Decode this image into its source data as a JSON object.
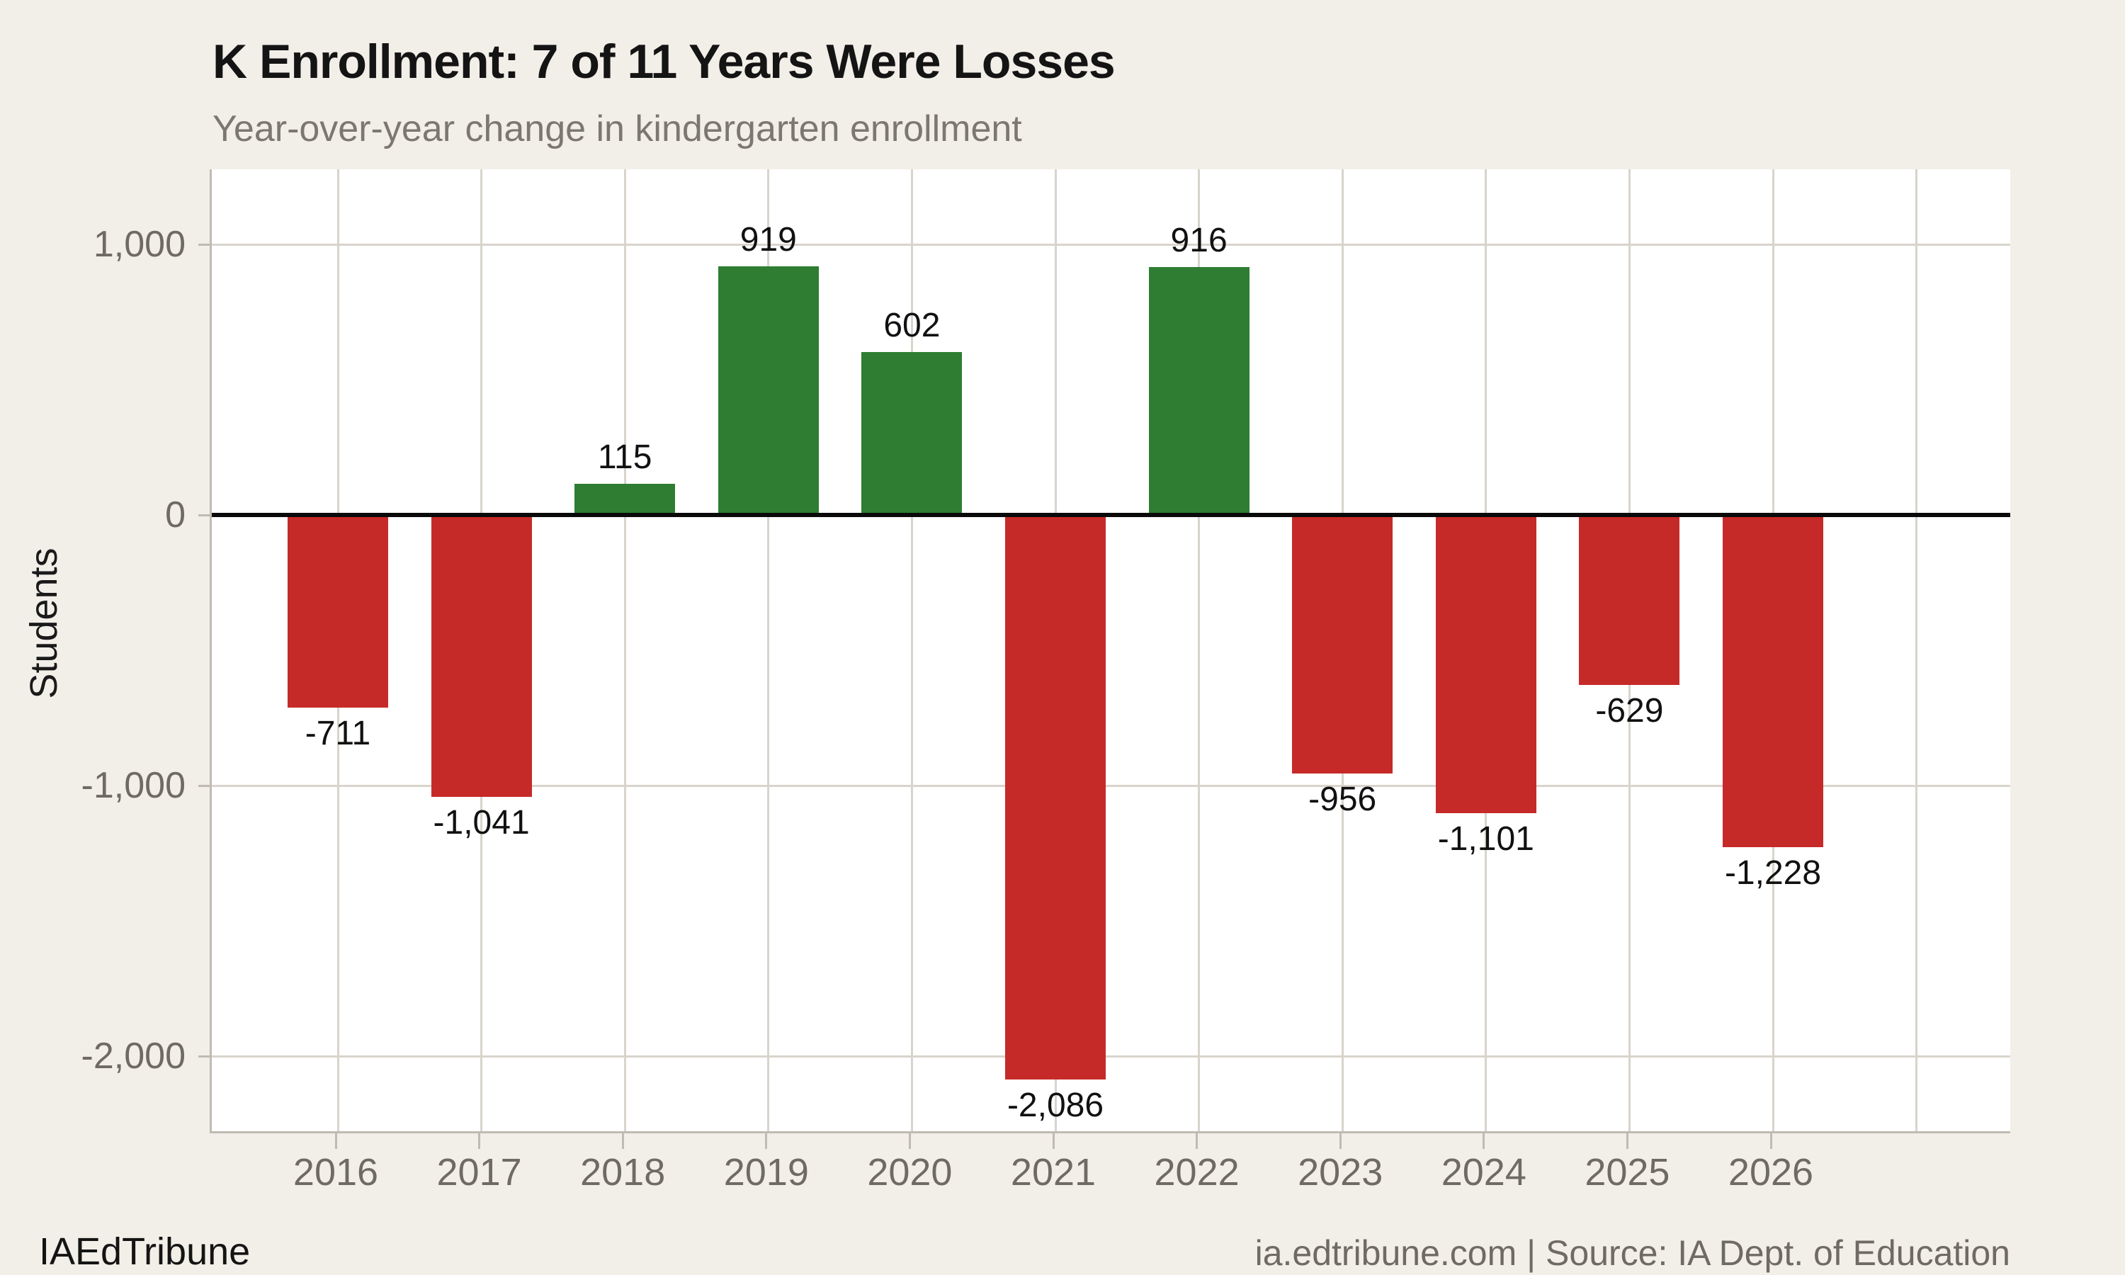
{
  "header": {
    "title": "K Enrollment: 7 of 11 Years Were Losses",
    "subtitle": "Year-over-year change in kindergarten enrollment"
  },
  "footer": {
    "brand": "IAEdTribune",
    "source": "ia.edtribune.com | Source: IA Dept. of Education"
  },
  "colors": {
    "background": "#f2efe8",
    "plot_background": "#ffffff",
    "positive_bar": "#2e7d33",
    "negative_bar": "#c62a28",
    "gridline": "#d8d4cc",
    "axis_line": "#bfbbb3",
    "zero_line": "#0a0a0a",
    "tick_text": "#6f6b64"
  },
  "chart_data": {
    "type": "bar",
    "title": "K Enrollment: 7 of 11 Years Were Losses",
    "subtitle": "Year-over-year change in kindergarten enrollment",
    "xlabel": "",
    "ylabel": "Students",
    "categories": [
      "2016",
      "2017",
      "2018",
      "2019",
      "2020",
      "2021",
      "2022",
      "2023",
      "2024",
      "2025",
      "2026"
    ],
    "values": [
      -711,
      -1041,
      115,
      919,
      602,
      -2086,
      916,
      -956,
      -1101,
      -629,
      -1228
    ],
    "bar_labels": [
      "-711",
      "-1,041",
      "115",
      "919",
      "602",
      "-2,086",
      "916",
      "-956",
      "-1,101",
      "-629",
      "-1,228"
    ],
    "y_ticks": [
      {
        "value": 1000,
        "label": "1,000"
      },
      {
        "value": 0,
        "label": "0"
      },
      {
        "value": -1000,
        "label": "-1,000"
      },
      {
        "value": -2000,
        "label": "-2,000"
      }
    ],
    "ylim": [
      -2285,
      1277
    ],
    "grid": true,
    "legend_position": "none",
    "positive_color": "#2e7d33",
    "negative_color": "#c62a28"
  }
}
